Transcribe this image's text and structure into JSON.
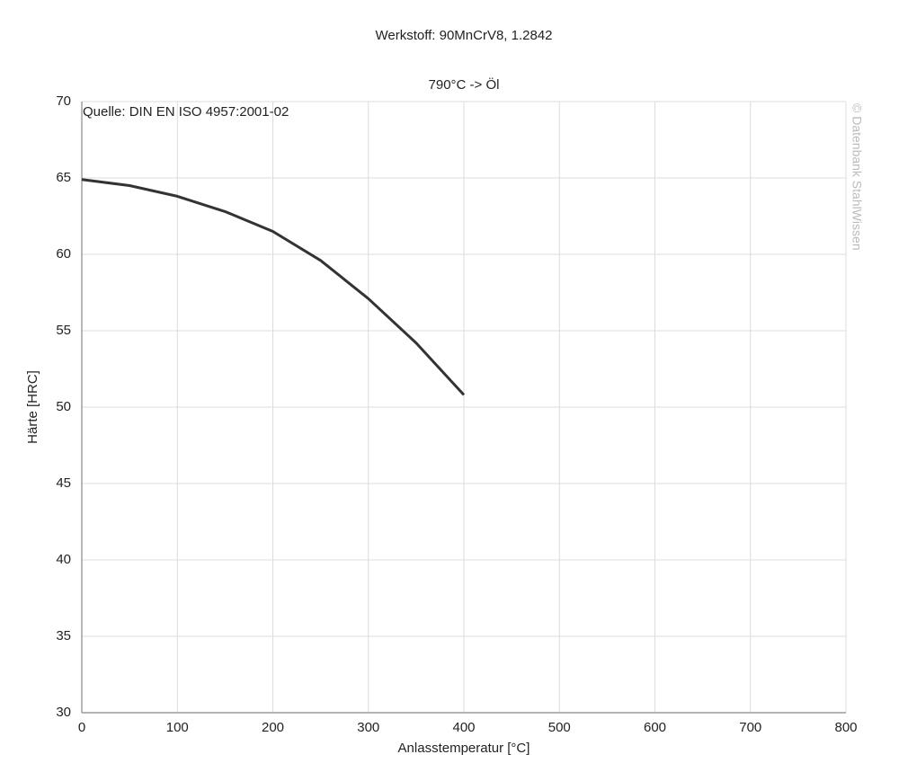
{
  "chart_data": {
    "type": "line",
    "title": "Werkstoff: 90MnCrV8, 1.2842",
    "subtitle": "790°C -> Öl",
    "annotation": "Quelle: DIN EN ISO 4957:2001-02",
    "watermark": "© Datenbank StahlWissen",
    "x_label": "Anlasstemperatur [°C]",
    "y_label": "Härte [HRC]",
    "x": [
      0,
      50,
      100,
      150,
      200,
      250,
      300,
      350,
      400
    ],
    "series": [
      {
        "name": "790°C -> Öl",
        "color": "#333333",
        "values": [
          64.9,
          64.5,
          63.8,
          62.8,
          61.5,
          59.6,
          57.1,
          54.2,
          50.8
        ]
      }
    ],
    "xlim": [
      0,
      800
    ],
    "xticks": [
      0,
      100,
      200,
      300,
      400,
      500,
      600,
      700,
      800
    ],
    "ylim": [
      30,
      70
    ],
    "yticks": [
      30,
      35,
      40,
      45,
      50,
      55,
      60,
      65,
      70
    ],
    "grid": true
  }
}
